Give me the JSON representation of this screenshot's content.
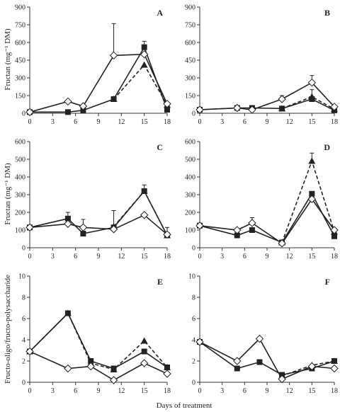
{
  "figure": {
    "xlabel": "Days of treatment",
    "ylabel_top": "Fructan (mg⁻¹ DM)",
    "ylabel_mid": "Fructan (mg⁻¹ DM)",
    "ylabel_bottom": "Fructo-oligo/fructo-polysaccharide",
    "colors": {
      "line": "#222222",
      "square_fill": "#222222",
      "triangle_fill": "#222222",
      "diamond_fill": "#ffffff"
    }
  },
  "chart_data": [
    {
      "panel": "A",
      "type": "line",
      "xlim": [
        0,
        18
      ],
      "xticks": [
        0,
        3,
        6,
        9,
        12,
        15,
        18
      ],
      "ylim": [
        0,
        900
      ],
      "yticks": [
        0,
        150,
        300,
        450,
        600,
        750,
        900
      ],
      "series": [
        {
          "marker": "diamond",
          "dash": false,
          "x": [
            0,
            5,
            7,
            11,
            15,
            18
          ],
          "y": [
            10,
            100,
            60,
            490,
            500,
            80
          ],
          "err": [
            0,
            0,
            0,
            270,
            0,
            0
          ]
        },
        {
          "marker": "square",
          "dash": false,
          "x": [
            0,
            5,
            7,
            11,
            15,
            18
          ],
          "y": [
            10,
            10,
            25,
            120,
            560,
            30
          ],
          "err": [
            0,
            0,
            0,
            0,
            50,
            0
          ]
        },
        {
          "marker": "triangle",
          "dash": true,
          "x": [
            11,
            15,
            18
          ],
          "y": [
            120,
            410,
            70
          ],
          "err": [
            0,
            0,
            0
          ]
        }
      ]
    },
    {
      "panel": "B",
      "type": "line",
      "xlim": [
        0,
        18
      ],
      "xticks": [
        0,
        3,
        6,
        9,
        12,
        15,
        18
      ],
      "ylim": [
        0,
        900
      ],
      "yticks": [
        0,
        150,
        300,
        450,
        600,
        750,
        900
      ],
      "series": [
        {
          "marker": "diamond",
          "dash": false,
          "x": [
            0,
            5,
            7,
            11,
            15,
            18
          ],
          "y": [
            30,
            45,
            30,
            120,
            260,
            55
          ],
          "err": [
            0,
            0,
            0,
            30,
            60,
            0
          ]
        },
        {
          "marker": "square",
          "dash": false,
          "x": [
            0,
            5,
            7,
            11,
            15,
            18
          ],
          "y": [
            30,
            45,
            45,
            40,
            120,
            25
          ],
          "err": [
            0,
            0,
            0,
            0,
            0,
            0
          ]
        },
        {
          "marker": "triangle",
          "dash": true,
          "x": [
            11,
            15,
            18
          ],
          "y": [
            40,
            140,
            35
          ],
          "err": [
            0,
            60,
            0
          ]
        }
      ]
    },
    {
      "panel": "C",
      "type": "line",
      "xlim": [
        0,
        18
      ],
      "xticks": [
        0,
        3,
        6,
        9,
        12,
        15,
        18
      ],
      "ylim": [
        0,
        600
      ],
      "yticks": [
        0,
        100,
        200,
        300,
        400,
        500,
        600
      ],
      "series": [
        {
          "marker": "diamond",
          "dash": false,
          "x": [
            0,
            5,
            7,
            11,
            15,
            18
          ],
          "y": [
            115,
            135,
            115,
            105,
            185,
            75
          ],
          "err": [
            0,
            0,
            45,
            0,
            0,
            40
          ]
        },
        {
          "marker": "square",
          "dash": false,
          "x": [
            0,
            5,
            7,
            11,
            15,
            18
          ],
          "y": [
            115,
            165,
            80,
            115,
            320,
            70
          ],
          "err": [
            0,
            35,
            0,
            95,
            35,
            0
          ]
        },
        {
          "marker": "triangle",
          "dash": true,
          "x": [
            11,
            15,
            18
          ],
          "y": [
            120,
            320,
            70
          ],
          "err": [
            0,
            0,
            0
          ]
        }
      ]
    },
    {
      "panel": "D",
      "type": "line",
      "xlim": [
        0,
        18
      ],
      "xticks": [
        0,
        3,
        6,
        9,
        12,
        15,
        18
      ],
      "ylim": [
        0,
        600
      ],
      "yticks": [
        0,
        100,
        200,
        300,
        400,
        500,
        600
      ],
      "series": [
        {
          "marker": "diamond",
          "dash": false,
          "x": [
            0,
            5,
            7,
            11,
            15,
            18
          ],
          "y": [
            125,
            100,
            140,
            25,
            275,
            100
          ],
          "err": [
            0,
            0,
            30,
            0,
            0,
            0
          ]
        },
        {
          "marker": "square",
          "dash": false,
          "x": [
            0,
            5,
            7,
            11,
            15,
            18
          ],
          "y": [
            125,
            70,
            100,
            30,
            305,
            65
          ],
          "err": [
            0,
            0,
            0,
            0,
            0,
            0
          ]
        },
        {
          "marker": "triangle",
          "dash": true,
          "x": [
            11,
            15,
            18
          ],
          "y": [
            30,
            490,
            90
          ],
          "err": [
            0,
            45,
            0
          ]
        }
      ]
    },
    {
      "panel": "E",
      "type": "line",
      "xlim": [
        0,
        18
      ],
      "xticks": [
        0,
        3,
        6,
        9,
        12,
        15,
        18
      ],
      "ylim": [
        0,
        10
      ],
      "yticks": [
        0,
        2,
        4,
        6,
        8,
        10
      ],
      "series": [
        {
          "marker": "diamond",
          "dash": false,
          "x": [
            0,
            5,
            8,
            11,
            15,
            18
          ],
          "y": [
            2.9,
            1.3,
            1.5,
            0.2,
            1.8,
            0.8
          ],
          "err": [
            0,
            0,
            0,
            0,
            0,
            0
          ]
        },
        {
          "marker": "square",
          "dash": false,
          "x": [
            0,
            5,
            8,
            11,
            15,
            18
          ],
          "y": [
            2.9,
            6.5,
            2.0,
            1.3,
            2.9,
            1.4
          ],
          "err": [
            0,
            0,
            0,
            0,
            0,
            0
          ]
        },
        {
          "marker": "triangle",
          "dash": true,
          "x": [
            0,
            5,
            8,
            11,
            15,
            18
          ],
          "y": [
            2.9,
            6.5,
            1.8,
            1.2,
            3.9,
            1.4
          ],
          "err": [
            0,
            0,
            0,
            0,
            0,
            0
          ]
        }
      ]
    },
    {
      "panel": "F",
      "type": "line",
      "xlim": [
        0,
        18
      ],
      "xticks": [
        0,
        3,
        6,
        9,
        12,
        15,
        18
      ],
      "ylim": [
        0,
        10
      ],
      "yticks": [
        0,
        2,
        4,
        6,
        8,
        10
      ],
      "series": [
        {
          "marker": "diamond",
          "dash": false,
          "x": [
            0,
            5,
            8,
            11,
            15,
            18
          ],
          "y": [
            3.8,
            2.0,
            4.1,
            0.3,
            1.5,
            1.3
          ],
          "err": [
            0,
            0,
            0,
            0,
            0,
            0
          ]
        },
        {
          "marker": "square",
          "dash": false,
          "x": [
            0,
            5,
            8,
            11,
            15,
            18
          ],
          "y": [
            3.8,
            1.3,
            1.9,
            0.7,
            1.3,
            2.0
          ],
          "err": [
            0,
            0,
            0,
            0,
            0,
            0
          ]
        },
        {
          "marker": "triangle",
          "dash": true,
          "x": [
            11,
            15,
            18
          ],
          "y": [
            0.6,
            1.6,
            2.0
          ],
          "err": [
            0,
            0,
            0
          ]
        }
      ]
    }
  ]
}
